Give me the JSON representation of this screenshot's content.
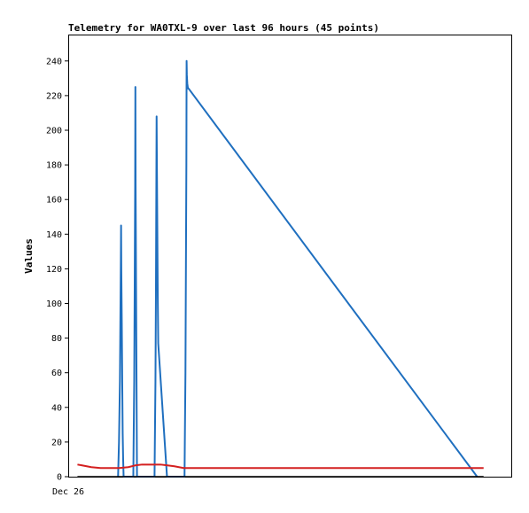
{
  "chart_data": {
    "type": "line",
    "title": "Telemetry for WA0TXL-9 over last 96 hours (45 points)",
    "xlabel": "",
    "ylabel": "Values",
    "x_tick_labels": [
      "Dec 26"
    ],
    "x_unit": "hours",
    "xlim": [
      0,
      96
    ],
    "ylim": [
      0,
      250
    ],
    "y_ticks": [
      0,
      20,
      40,
      60,
      80,
      100,
      120,
      140,
      160,
      180,
      200,
      220,
      240
    ],
    "grid": false,
    "legend": "none",
    "series": [
      {
        "color": "#1f6fbf",
        "x": [
          10.8,
          11.0,
          11.2,
          11.3,
          11.4,
          11.45,
          11.5,
          11.6,
          11.7,
          11.75,
          11.8,
          11.9,
          12.0,
          12.2,
          14.1,
          14.3,
          14.4,
          14.5,
          14.55,
          14.6,
          14.7,
          14.8,
          14.9,
          15.0,
          18.7,
          18.9,
          19.0,
          19.1,
          19.15,
          19.2,
          19.3,
          19.4,
          19.5,
          21.4,
          25.2,
          25.4,
          25.5,
          25.6,
          25.65,
          25.7,
          25.8,
          25.9,
          26.0,
          26.1,
          88.6
        ],
        "y": [
          0,
          20,
          55,
          90,
          125,
          145,
          120,
          90,
          55,
          40,
          25,
          10,
          0,
          0,
          0,
          55,
          110,
          168,
          225,
          168,
          110,
          55,
          0,
          0,
          0,
          55,
          104,
          172,
          208,
          186,
          145,
          104,
          77,
          0,
          0,
          60,
          120,
          180,
          240,
          232,
          227,
          225,
          224,
          224,
          0
        ]
      },
      {
        "color": "#d42020",
        "x": [
          2.0,
          3.0,
          5.0,
          7.0,
          9.0,
          11.0,
          13.0,
          14.5,
          16.0,
          18.0,
          20.0,
          21.5,
          23.0,
          24.0,
          25.0,
          26.0,
          30.0,
          40.0,
          50.0,
          60.0,
          70.0,
          80.0,
          90.0
        ],
        "y": [
          7,
          6.5,
          5.5,
          5,
          5,
          5,
          5.5,
          6.5,
          7,
          7,
          7,
          6.5,
          6,
          5.5,
          5,
          5,
          5,
          5,
          5,
          5,
          5,
          5,
          5
        ]
      },
      {
        "color": "#000000",
        "x": [
          2.0,
          90.0
        ],
        "y": [
          0,
          0
        ]
      }
    ]
  }
}
